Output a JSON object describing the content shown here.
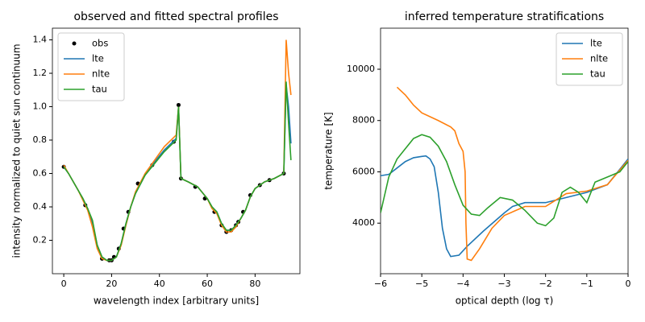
{
  "chart_data": [
    {
      "type": "line",
      "title": "observed and fitted spectral profiles",
      "xlabel": "wavelength index [arbitrary units]",
      "ylabel": "intensity normalized to quiet sun continuum",
      "xlim": [
        -4.75,
        98.75
      ],
      "ylim": [
        0.0,
        1.47
      ],
      "xticks": [
        0,
        20,
        40,
        60,
        80
      ],
      "yticks": [
        0.2,
        0.4,
        0.6,
        0.8,
        {
          "value": 1,
          "label": "1.0"
        },
        1.2,
        1.4
      ],
      "legend": "upper left",
      "series": [
        {
          "name": "obs",
          "color": "#000000",
          "style": "points",
          "x": [
            0,
            9,
            16,
            19,
            20,
            21,
            23,
            25,
            27,
            31,
            37,
            46,
            48,
            49,
            55,
            59,
            63,
            66,
            68,
            70,
            72,
            73,
            75,
            78,
            82,
            86,
            92
          ],
          "values": [
            0.64,
            0.41,
            0.09,
            0.08,
            0.08,
            0.1,
            0.15,
            0.27,
            0.37,
            0.54,
            0.65,
            0.79,
            1.01,
            0.57,
            0.52,
            0.45,
            0.37,
            0.29,
            0.25,
            0.26,
            0.29,
            0.31,
            0.37,
            0.47,
            0.53,
            0.56,
            0.6
          ]
        },
        {
          "name": "lte",
          "color": "#1f77b4",
          "style": "line",
          "x": [
            0,
            2,
            4,
            6,
            8,
            10,
            12,
            14,
            16,
            18,
            20,
            22,
            24,
            26,
            28,
            30,
            34,
            38,
            42,
            47,
            48,
            49,
            52,
            56,
            60,
            62,
            64,
            66,
            68,
            70,
            72,
            74,
            76,
            78,
            80,
            84,
            88,
            92,
            93,
            94,
            95
          ],
          "values": [
            0.64,
            0.6,
            0.55,
            0.5,
            0.45,
            0.39,
            0.3,
            0.17,
            0.1,
            0.08,
            0.08,
            0.1,
            0.18,
            0.3,
            0.4,
            0.48,
            0.59,
            0.67,
            0.74,
            0.81,
            1.0,
            0.57,
            0.55,
            0.52,
            0.45,
            0.4,
            0.37,
            0.3,
            0.26,
            0.26,
            0.29,
            0.33,
            0.38,
            0.46,
            0.51,
            0.55,
            0.57,
            0.6,
            1.13,
            1.0,
            0.78
          ]
        },
        {
          "name": "nlte",
          "color": "#ff7f0e",
          "style": "line",
          "x": [
            0,
            2,
            4,
            6,
            8,
            10,
            12,
            14,
            16,
            18,
            20,
            22,
            24,
            26,
            28,
            30,
            34,
            38,
            42,
            47,
            48,
            49,
            52,
            56,
            60,
            62,
            64,
            66,
            68,
            70,
            72,
            74,
            76,
            78,
            80,
            84,
            88,
            92,
            93,
            94,
            95
          ],
          "values": [
            0.65,
            0.6,
            0.55,
            0.5,
            0.44,
            0.38,
            0.28,
            0.15,
            0.09,
            0.08,
            0.08,
            0.1,
            0.17,
            0.29,
            0.4,
            0.49,
            0.6,
            0.68,
            0.76,
            0.83,
            1.0,
            0.57,
            0.55,
            0.52,
            0.45,
            0.39,
            0.36,
            0.29,
            0.25,
            0.25,
            0.28,
            0.33,
            0.38,
            0.46,
            0.51,
            0.55,
            0.57,
            0.6,
            1.4,
            1.2,
            1.07
          ]
        },
        {
          "name": "tau",
          "color": "#2ca02c",
          "style": "line",
          "x": [
            0,
            2,
            4,
            6,
            8,
            10,
            12,
            14,
            16,
            18,
            20,
            22,
            24,
            26,
            28,
            30,
            34,
            38,
            42,
            47,
            48,
            49,
            52,
            56,
            60,
            62,
            64,
            66,
            68,
            70,
            72,
            74,
            76,
            78,
            80,
            84,
            88,
            92,
            93,
            94,
            95
          ],
          "values": [
            0.64,
            0.6,
            0.55,
            0.5,
            0.45,
            0.39,
            0.32,
            0.17,
            0.1,
            0.08,
            0.08,
            0.1,
            0.18,
            0.3,
            0.4,
            0.48,
            0.59,
            0.66,
            0.73,
            0.8,
            1.0,
            0.57,
            0.55,
            0.52,
            0.45,
            0.4,
            0.37,
            0.3,
            0.26,
            0.26,
            0.29,
            0.33,
            0.38,
            0.46,
            0.51,
            0.55,
            0.57,
            0.6,
            1.15,
            0.9,
            0.68
          ]
        }
      ]
    },
    {
      "type": "line",
      "title": "inferred temperature stratifications",
      "xlabel": "optical depth (log τ)",
      "ylabel": "temperature [K]",
      "xlim": [
        -6,
        0
      ],
      "ylim": [
        2030,
        11600
      ],
      "xticks": [
        {
          "value": -6,
          "label": "−6"
        },
        {
          "value": -5,
          "label": "−5"
        },
        {
          "value": -4,
          "label": "−4"
        },
        {
          "value": -3,
          "label": "−3"
        },
        {
          "value": -2,
          "label": "−2"
        },
        {
          "value": -1,
          "label": "−1"
        },
        0
      ],
      "yticks": [
        4000,
        6000,
        8000,
        10000
      ],
      "legend": "upper right",
      "series": [
        {
          "name": "lte",
          "color": "#1f77b4",
          "style": "line",
          "x": [
            -6,
            -5.8,
            -5.6,
            -5.4,
            -5.2,
            -5.0,
            -4.9,
            -4.8,
            -4.7,
            -4.6,
            -4.5,
            -4.4,
            -4.3,
            -4.1,
            -3.9,
            -3.5,
            -3.0,
            -2.8,
            -2.5,
            -2.0,
            -1.5,
            -1.0,
            -0.5,
            0
          ],
          "values": [
            5850,
            5900,
            6150,
            6400,
            6550,
            6600,
            6620,
            6500,
            6200,
            5200,
            3800,
            3000,
            2700,
            2750,
            3100,
            3700,
            4400,
            4650,
            4800,
            4800,
            5000,
            5200,
            5500,
            6500
          ]
        },
        {
          "name": "nlte",
          "color": "#ff7f0e",
          "style": "line",
          "x": [
            -5.6,
            -5.4,
            -5.2,
            -5.0,
            -4.6,
            -4.3,
            -4.2,
            -4.1,
            -4.0,
            -3.95,
            -3.93,
            -3.9,
            -3.8,
            -3.6,
            -3.3,
            -3.0,
            -2.5,
            -2.0,
            -1.5,
            -1.0,
            -0.5,
            0
          ],
          "values": [
            9300,
            9000,
            8600,
            8300,
            8000,
            7750,
            7600,
            7100,
            6800,
            6000,
            4000,
            2600,
            2550,
            3000,
            3800,
            4300,
            4650,
            4650,
            5150,
            5250,
            5500,
            6450
          ]
        },
        {
          "name": "tau",
          "color": "#2ca02c",
          "style": "line",
          "x": [
            -6,
            -5.8,
            -5.6,
            -5.4,
            -5.2,
            -5.0,
            -4.8,
            -4.6,
            -4.4,
            -4.2,
            -4.0,
            -3.8,
            -3.6,
            -3.4,
            -3.1,
            -2.8,
            -2.5,
            -2.2,
            -2.0,
            -1.8,
            -1.6,
            -1.4,
            -1.2,
            -1.0,
            -0.8,
            -0.5,
            -0.2,
            0
          ],
          "values": [
            4400,
            5800,
            6500,
            6900,
            7300,
            7450,
            7350,
            7000,
            6400,
            5500,
            4700,
            4350,
            4300,
            4600,
            5000,
            4900,
            4500,
            4000,
            3900,
            4200,
            5200,
            5400,
            5200,
            4800,
            5600,
            5800,
            6000,
            6400
          ]
        }
      ]
    }
  ]
}
